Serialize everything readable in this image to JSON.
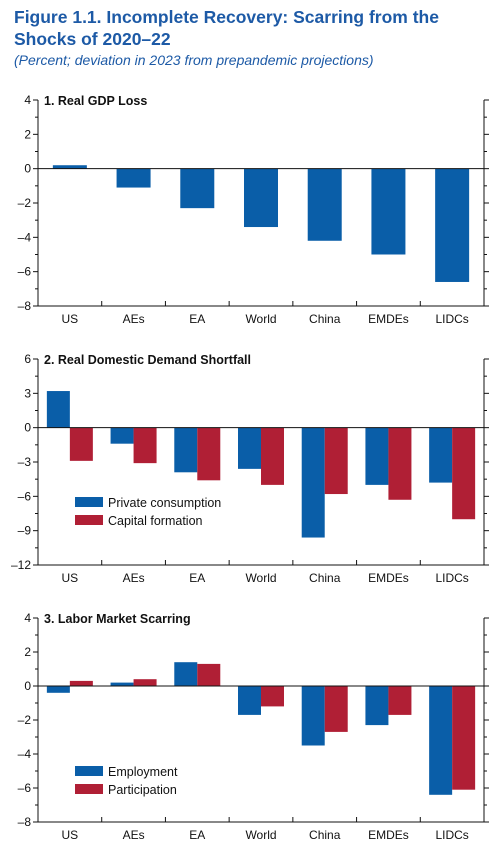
{
  "figure": {
    "title": "Figure 1.1.  Incomplete Recovery: Scarring from the Shocks of 2020–22",
    "subtitle": "(Percent; deviation in 2023 from prepandemic projections)"
  },
  "colors": {
    "blue": "#0a5ea8",
    "red": "#b01f35",
    "title_blue": "#1d5aa6"
  },
  "chart_data": [
    {
      "type": "bar",
      "title": "1. Real GDP Loss",
      "categories": [
        "US",
        "AEs",
        "EA",
        "World",
        "China",
        "EMDEs",
        "LIDCs"
      ],
      "series": [
        {
          "values": [
            0.2,
            -1.1,
            -2.3,
            -3.4,
            -4.2,
            -5.0,
            -6.6
          ]
        }
      ],
      "ylim": [
        -8,
        4
      ],
      "yticks": [
        4,
        2,
        0,
        -2,
        -4,
        -6,
        -8
      ],
      "ytick_labels": [
        "4",
        "2",
        "0",
        "–2",
        "–4",
        "–6",
        "–8"
      ],
      "legend": []
    },
    {
      "type": "bar",
      "title": "2. Real Domestic Demand Shortfall",
      "categories": [
        "US",
        "AEs",
        "EA",
        "World",
        "China",
        "EMDEs",
        "LIDCs"
      ],
      "series": [
        {
          "name": "Private consumption",
          "values": [
            3.2,
            -1.4,
            -3.9,
            -3.6,
            -9.6,
            -5.0,
            -4.8
          ]
        },
        {
          "name": "Capital formation",
          "values": [
            -2.9,
            -3.1,
            -4.6,
            -5.0,
            -5.8,
            -6.3,
            -8.0
          ]
        }
      ],
      "ylim": [
        -12,
        6
      ],
      "yticks": [
        6,
        3,
        0,
        -3,
        -6,
        -9,
        -12
      ],
      "ytick_labels": [
        "6",
        "3",
        "0",
        "–3",
        "–6",
        "–9",
        "–12"
      ],
      "legend": [
        "Private consumption",
        "Capital formation"
      ]
    },
    {
      "type": "bar",
      "title": "3. Labor Market Scarring",
      "categories": [
        "US",
        "AEs",
        "EA",
        "World",
        "China",
        "EMDEs",
        "LIDCs"
      ],
      "series": [
        {
          "name": "Employment",
          "values": [
            -0.4,
            0.2,
            1.4,
            -1.7,
            -3.5,
            -2.3,
            -6.4
          ]
        },
        {
          "name": "Participation",
          "values": [
            0.3,
            0.4,
            1.3,
            -1.2,
            -2.7,
            -1.7,
            -6.1
          ]
        }
      ],
      "ylim": [
        -8,
        4
      ],
      "yticks": [
        4,
        2,
        0,
        -2,
        -4,
        -6,
        -8
      ],
      "ytick_labels": [
        "4",
        "2",
        "0",
        "–2",
        "–4",
        "–6",
        "–8"
      ],
      "legend": [
        "Employment",
        "Participation"
      ]
    }
  ]
}
